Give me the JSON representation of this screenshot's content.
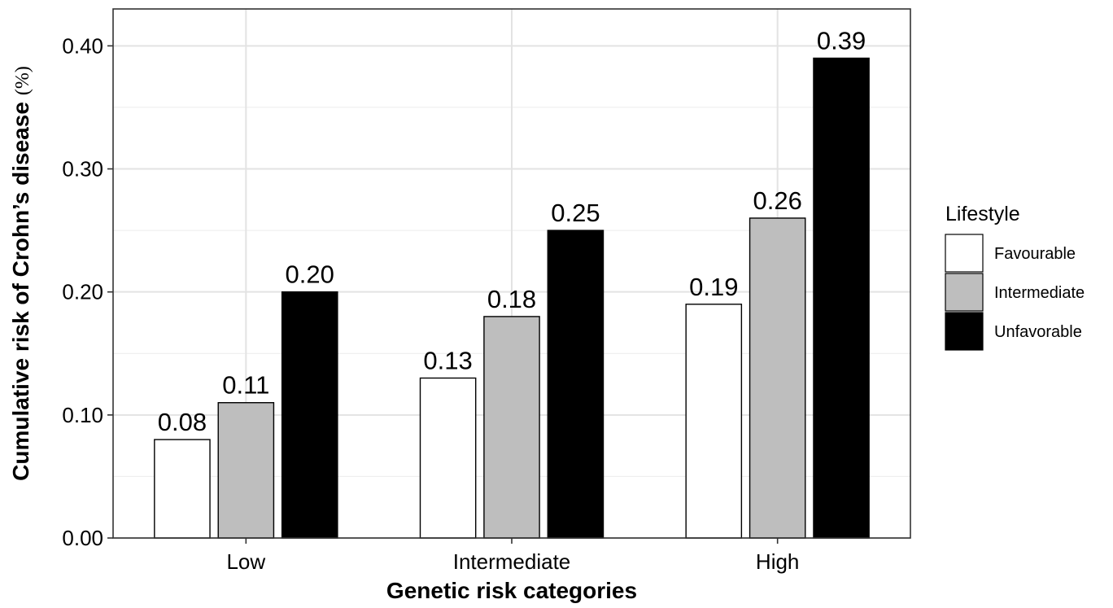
{
  "chart_data": {
    "type": "bar",
    "categories": [
      "Low",
      "Intermediate",
      "High"
    ],
    "series": [
      {
        "name": "Favourable",
        "values": [
          0.08,
          0.13,
          0.19
        ],
        "labels": [
          "0.08",
          "0.13",
          "0.19"
        ],
        "color": "#ffffff"
      },
      {
        "name": "Intermediate",
        "values": [
          0.11,
          0.18,
          0.26
        ],
        "labels": [
          "0.11",
          "0.18",
          "0.26"
        ],
        "color": "#bebebe"
      },
      {
        "name": "Unfavorable",
        "values": [
          0.2,
          0.25,
          0.39
        ],
        "labels": [
          "0.20",
          "0.25",
          "0.39"
        ],
        "color": "#000000"
      }
    ],
    "xlabel": "Genetic risk categories",
    "ylabel": "Cumulative risk of Crohn’s disease",
    "ylabel_unit": "(%)",
    "ylim": [
      0,
      0.43
    ],
    "yticks": [
      0.0,
      0.1,
      0.2,
      0.3,
      0.4
    ],
    "ytick_labels": [
      "0.00",
      "0.10",
      "0.20",
      "0.30",
      "0.40"
    ],
    "grid": true,
    "legend": {
      "title": "Lifestyle",
      "position": "right"
    }
  }
}
